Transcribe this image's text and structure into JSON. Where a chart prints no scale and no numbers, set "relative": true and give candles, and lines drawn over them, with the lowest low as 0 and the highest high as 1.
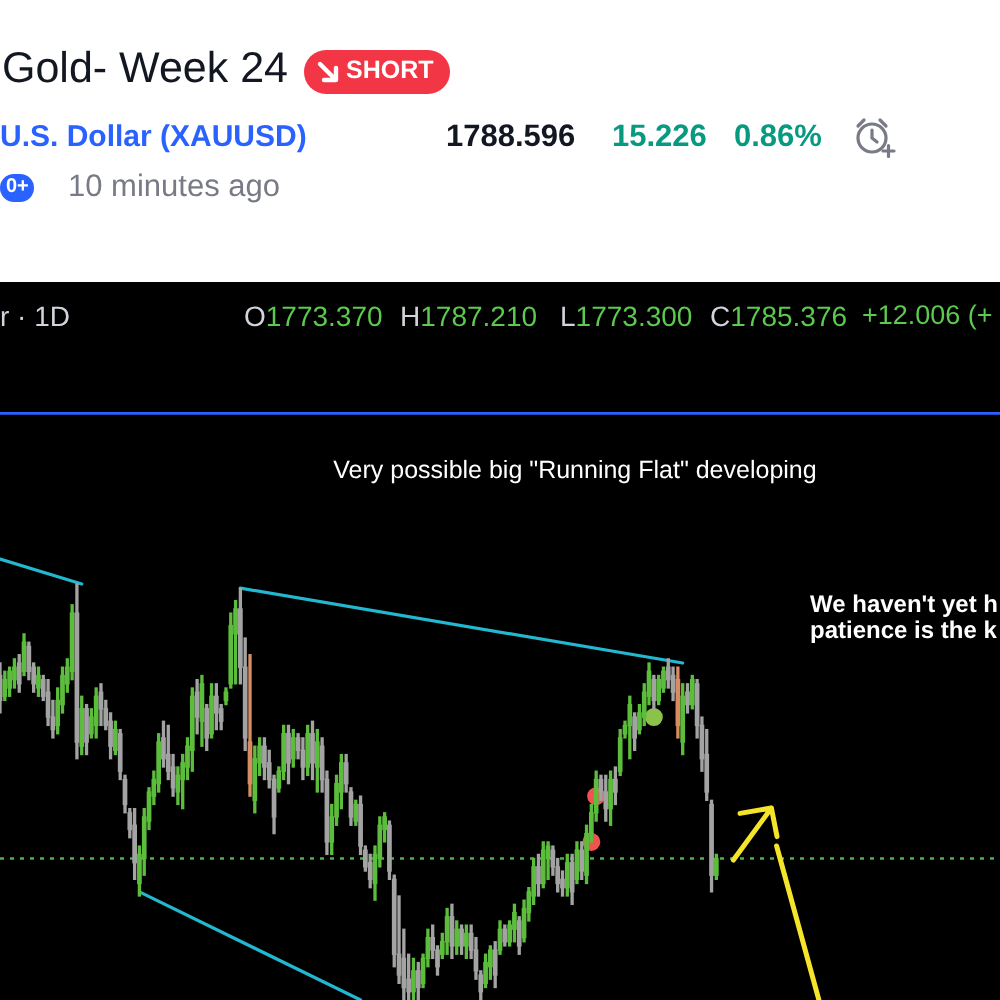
{
  "chart_data": {
    "type": "candlestick",
    "title": "Gold- Week 24",
    "subtitle": "U.S. Dollar (XAUUSD)",
    "annotations": [
      "SHORT",
      "1788.596",
      "15.226",
      "0.86%",
      "0+",
      "10 minutes ago",
      "r · 1D",
      "O1773.370",
      "H1787.210",
      "L1773.300",
      "C1785.376",
      "+12.006 (+",
      "Very possible big \"Running Flat\" developing",
      "We haven't yet h\npatience is the k"
    ],
    "relative": true,
    "categories": [
      null,
      null,
      null,
      null,
      null,
      null,
      null,
      null,
      null,
      null,
      null,
      null,
      null,
      null,
      null,
      null,
      null,
      null,
      null,
      null,
      null,
      null,
      null,
      null,
      null,
      null,
      null,
      null,
      null,
      null,
      null,
      null,
      null,
      null,
      null,
      null,
      null,
      null,
      null,
      null,
      null,
      null,
      null,
      null,
      null,
      null,
      null,
      null,
      null,
      null,
      null,
      null,
      null,
      null,
      null,
      null,
      null,
      null,
      null,
      null,
      null,
      null,
      null,
      null,
      null,
      null,
      null,
      null,
      null,
      null,
      null,
      null,
      null,
      null,
      null,
      null,
      null,
      null,
      null,
      null,
      null,
      null,
      null,
      null,
      null,
      null,
      null,
      null,
      null,
      null,
      null,
      null,
      null,
      null,
      null,
      null,
      null,
      null,
      null,
      null,
      null,
      null,
      null,
      null,
      null,
      null,
      null,
      null,
      null,
      null,
      null,
      null,
      null,
      null,
      null,
      null,
      null,
      null,
      null,
      null,
      null,
      null,
      null,
      null,
      null,
      null,
      null,
      null,
      null,
      null,
      null,
      null,
      null,
      null,
      null,
      null,
      null,
      null,
      null,
      null,
      null,
      null,
      null,
      null,
      null,
      null,
      null,
      null,
      null,
      null,
      null,
      null,
      null,
      null,
      null,
      null,
      null,
      null,
      null,
      null,
      null,
      null,
      null,
      null,
      null,
      null,
      null,
      null,
      null,
      null,
      null,
      null,
      null,
      null,
      null,
      null,
      null,
      null,
      null,
      null,
      null,
      null,
      null,
      null,
      null,
      null,
      null,
      null,
      null,
      null,
      null,
      null,
      null,
      null,
      null,
      null,
      null,
      null,
      null,
      null,
      null,
      null,
      null,
      null,
      null,
      null,
      null,
      null,
      null
    ],
    "ohlc": [
      [
        0.78,
        0.81,
        0.69,
        0.72
      ],
      [
        0.73,
        0.79,
        0.72,
        0.77
      ],
      [
        0.75,
        0.8,
        0.73,
        0.79
      ],
      [
        0.77,
        0.82,
        0.75,
        0.8
      ],
      [
        0.81,
        0.83,
        0.74,
        0.76
      ],
      [
        0.79,
        0.88,
        0.78,
        0.86
      ],
      [
        0.85,
        0.86,
        0.77,
        0.79
      ],
      [
        0.8,
        0.81,
        0.74,
        0.76
      ],
      [
        0.75,
        0.8,
        0.73,
        0.78
      ],
      [
        0.77,
        0.78,
        0.72,
        0.73
      ],
      [
        0.74,
        0.77,
        0.66,
        0.68
      ],
      [
        0.68,
        0.72,
        0.63,
        0.65
      ],
      [
        0.66,
        0.75,
        0.64,
        0.72
      ],
      [
        0.71,
        0.8,
        0.69,
        0.78
      ],
      [
        0.76,
        0.82,
        0.74,
        0.8
      ],
      [
        0.79,
        0.95,
        0.77,
        0.93
      ],
      [
        0.93,
        1.0,
        0.58,
        0.62
      ],
      [
        0.61,
        0.73,
        0.59,
        0.7
      ],
      [
        0.7,
        0.71,
        0.59,
        0.62
      ],
      [
        0.64,
        0.7,
        0.63,
        0.68
      ],
      [
        0.66,
        0.75,
        0.63,
        0.73
      ],
      [
        0.74,
        0.76,
        0.66,
        0.7
      ],
      [
        0.7,
        0.72,
        0.65,
        0.66
      ],
      [
        0.67,
        0.69,
        0.58,
        0.61
      ],
      [
        0.6,
        0.67,
        0.59,
        0.65
      ],
      [
        0.64,
        0.65,
        0.53,
        0.55
      ],
      [
        0.53,
        0.54,
        0.45,
        0.47
      ],
      [
        0.45,
        0.46,
        0.39,
        0.41
      ],
      [
        0.42,
        0.46,
        0.29,
        0.33
      ],
      [
        0.28,
        0.37,
        0.25,
        0.35
      ],
      [
        0.34,
        0.46,
        0.3,
        0.44
      ],
      [
        0.43,
        0.51,
        0.41,
        0.5
      ],
      [
        0.49,
        0.55,
        0.47,
        0.53
      ],
      [
        0.52,
        0.64,
        0.5,
        0.62
      ],
      [
        0.63,
        0.67,
        0.56,
        0.58
      ],
      [
        0.59,
        0.66,
        0.53,
        0.55
      ],
      [
        0.56,
        0.59,
        0.49,
        0.51
      ],
      [
        0.5,
        0.56,
        0.47,
        0.54
      ],
      [
        0.53,
        0.59,
        0.46,
        0.57
      ],
      [
        0.56,
        0.63,
        0.53,
        0.61
      ],
      [
        0.6,
        0.75,
        0.55,
        0.73
      ],
      [
        0.74,
        0.77,
        0.64,
        0.68
      ],
      [
        0.67,
        0.78,
        0.61,
        0.76
      ],
      [
        0.7,
        0.71,
        0.6,
        0.63
      ],
      [
        0.64,
        0.76,
        0.63,
        0.73
      ],
      [
        0.73,
        0.76,
        0.65,
        0.69
      ],
      [
        0.7,
        0.71,
        0.65,
        0.67
      ],
      [
        0.72,
        0.75,
        0.71,
        0.74
      ],
      [
        0.76,
        0.93,
        0.75,
        0.9
      ],
      [
        0.88,
        0.96,
        0.76,
        0.94
      ],
      [
        0.94,
        0.99,
        0.76,
        0.8
      ],
      [
        0.8,
        0.87,
        0.6,
        0.63
      ],
      [
        0.62,
        0.83,
        0.49,
        0.52
      ],
      [
        0.48,
        0.61,
        0.45,
        0.58
      ],
      [
        0.57,
        0.63,
        0.54,
        0.61
      ],
      [
        0.61,
        0.63,
        0.53,
        0.56
      ],
      [
        0.57,
        0.6,
        0.51,
        0.53
      ],
      [
        0.53,
        0.54,
        0.4,
        0.44
      ],
      [
        0.51,
        0.56,
        0.5,
        0.55
      ],
      [
        0.55,
        0.66,
        0.53,
        0.64
      ],
      [
        0.64,
        0.66,
        0.52,
        0.57
      ],
      [
        0.58,
        0.65,
        0.56,
        0.63
      ],
      [
        0.63,
        0.64,
        0.58,
        0.6
      ],
      [
        0.6,
        0.63,
        0.53,
        0.56
      ],
      [
        0.56,
        0.66,
        0.54,
        0.64
      ],
      [
        0.64,
        0.67,
        0.53,
        0.57
      ],
      [
        0.56,
        0.65,
        0.5,
        0.62
      ],
      [
        0.61,
        0.63,
        0.5,
        0.53
      ],
      [
        0.53,
        0.55,
        0.35,
        0.38
      ],
      [
        0.38,
        0.47,
        0.35,
        0.44
      ],
      [
        0.44,
        0.54,
        0.42,
        0.52
      ],
      [
        0.5,
        0.59,
        0.46,
        0.57
      ],
      [
        0.57,
        0.59,
        0.5,
        0.52
      ],
      [
        0.5,
        0.51,
        0.42,
        0.44
      ],
      [
        0.43,
        0.48,
        0.42,
        0.47
      ],
      [
        0.47,
        0.49,
        0.35,
        0.37
      ],
      [
        0.36,
        0.37,
        0.31,
        0.32
      ],
      [
        0.33,
        0.35,
        0.27,
        0.29
      ],
      [
        0.28,
        0.37,
        0.24,
        0.35
      ],
      [
        0.34,
        0.44,
        0.32,
        0.42
      ],
      [
        0.41,
        0.45,
        0.38,
        0.44
      ],
      [
        0.42,
        0.43,
        0.29,
        0.31
      ],
      [
        0.29,
        0.3,
        0.08,
        0.11
      ],
      [
        0.11,
        0.25,
        0.04,
        0.06
      ],
      [
        0.1,
        0.17,
        0,
        0.03
      ],
      [
        0.05,
        0.11,
        0,
        0.02
      ],
      [
        0.02,
        0.1,
        0,
        0.07
      ],
      [
        0.07,
        0.09,
        0,
        0.03
      ],
      [
        0.04,
        0.11,
        0.03,
        0.1
      ],
      [
        0.1,
        0.17,
        0.08,
        0.15
      ],
      [
        0.15,
        0.18,
        0.1,
        0.12
      ],
      [
        0.12,
        0.13,
        0.06,
        0.08
      ],
      [
        0.11,
        0.16,
        0.1,
        0.14
      ],
      [
        0.14,
        0.22,
        0.11,
        0.2
      ],
      [
        0.2,
        0.23,
        0.1,
        0.13
      ],
      [
        0.13,
        0.19,
        0.11,
        0.17
      ],
      [
        0.17,
        0.18,
        0.11,
        0.13
      ],
      [
        0.13,
        0.18,
        0.1,
        0.16
      ],
      [
        0.16,
        0.18,
        0.1,
        0.12
      ],
      [
        0.12,
        0.15,
        0.05,
        0.07
      ],
      [
        0.06,
        0.07,
        0,
        0.02
      ],
      [
        0.04,
        0.11,
        0.03,
        0.09
      ],
      [
        0.08,
        0.13,
        0.05,
        0.12
      ],
      [
        0.12,
        0.14,
        0.03,
        0.06
      ],
      [
        0.12,
        0.19,
        0.11,
        0.17
      ],
      [
        0.17,
        0.18,
        0.13,
        0.14
      ],
      [
        0.14,
        0.19,
        0.13,
        0.18
      ],
      [
        0.17,
        0.23,
        0.14,
        0.21
      ],
      [
        0.19,
        0.2,
        0.11,
        0.13
      ],
      [
        0.15,
        0.24,
        0.14,
        0.22
      ],
      [
        0.21,
        0.27,
        0.19,
        0.26
      ],
      [
        0.25,
        0.34,
        0.23,
        0.32
      ],
      [
        0.32,
        0.35,
        0.25,
        0.28
      ],
      [
        0.28,
        0.38,
        0.27,
        0.36
      ],
      [
        0.34,
        0.38,
        0.29,
        0.37
      ],
      [
        0.36,
        0.37,
        0.3,
        0.32
      ],
      [
        0.32,
        0.34,
        0.26,
        0.28
      ],
      [
        0.29,
        0.31,
        0.25,
        0.27
      ],
      [
        0.27,
        0.35,
        0.25,
        0.33
      ],
      [
        0.33,
        0.35,
        0.23,
        0.26
      ],
      [
        0.29,
        0.38,
        0.28,
        0.36
      ],
      [
        0.36,
        0.38,
        0.29,
        0.31
      ],
      [
        0.3,
        0.42,
        0.28,
        0.4
      ],
      [
        0.4,
        0.47,
        0.38,
        0.45
      ],
      [
        0.45,
        0.55,
        0.43,
        0.53
      ],
      [
        0.53,
        0.54,
        0.48,
        0.5
      ],
      [
        0.5,
        0.54,
        0.43,
        0.46
      ],
      [
        0.46,
        0.55,
        0.42,
        0.53
      ],
      [
        0.53,
        0.56,
        0.47,
        0.5
      ],
      [
        0.55,
        0.65,
        0.54,
        0.63
      ],
      [
        0.64,
        0.67,
        0.63,
        0.66
      ],
      [
        0.66,
        0.73,
        0.58,
        0.71
      ],
      [
        0.68,
        0.69,
        0.6,
        0.63
      ],
      [
        0.65,
        0.71,
        0.64,
        0.69
      ],
      [
        0.68,
        0.76,
        0.66,
        0.74
      ],
      [
        0.73,
        0.81,
        0.71,
        0.79
      ],
      [
        0.77,
        0.78,
        0.7,
        0.72
      ],
      [
        0.72,
        0.78,
        0.71,
        0.77
      ],
      [
        0.75,
        0.8,
        0.74,
        0.79
      ],
      [
        0.8,
        0.82,
        0.75,
        0.77
      ],
      [
        0.78,
        0.8,
        0.72,
        0.74
      ],
      [
        0.77,
        0.8,
        0.63,
        0.66
      ],
      [
        0.62,
        0.76,
        0.59,
        0.73
      ],
      [
        0.74,
        0.76,
        0.69,
        0.71
      ],
      [
        0.71,
        0.78,
        0.7,
        0.77
      ],
      [
        0.76,
        0.77,
        0.63,
        0.66
      ],
      [
        0.66,
        0.68,
        0.55,
        0.58
      ],
      [
        0.59,
        0.65,
        0.48,
        0.5
      ],
      [
        0.47,
        0.48,
        0.26,
        0.3
      ],
      [
        0.3,
        0.35,
        0.29,
        0.34
      ],
      null,
      null,
      null,
      null,
      null,
      null,
      null,
      null,
      null,
      null,
      null,
      null,
      null,
      null,
      null,
      null,
      null,
      null,
      null,
      null,
      null,
      null,
      null,
      null,
      null,
      null,
      null,
      null,
      null,
      null,
      null,
      null,
      null,
      null,
      null,
      null,
      null,
      null,
      null,
      null,
      null,
      null,
      null,
      null,
      null,
      null,
      null,
      null,
      null,
      null,
      null,
      null,
      null,
      null,
      null,
      null,
      null,
      null,
      null
    ],
    "colors": [
      "#a3a3a3",
      "#5cbd3c",
      "#5cbd3c",
      "#5cbd3c",
      "#a3a3a3",
      "#5cbd3c",
      "#a3a3a3",
      "#a3a3a3",
      "#5cbd3c",
      "#a3a3a3",
      "#a3a3a3",
      "#a3a3a3",
      "#5cbd3c",
      "#5cbd3c",
      "#5cbd3c",
      "#5cbd3c",
      "#a3a3a3",
      "#5cbd3c",
      "#a3a3a3",
      "#5cbd3c",
      "#5cbd3c",
      "#a3a3a3",
      "#a3a3a3",
      "#a3a3a3",
      "#5cbd3c",
      "#a3a3a3",
      "#a3a3a3",
      "#a3a3a3",
      "#a3a3a3",
      "#5cbd3c",
      "#5cbd3c",
      "#5cbd3c",
      "#5cbd3c",
      "#5cbd3c",
      "#a3a3a3",
      "#a3a3a3",
      "#a3a3a3",
      "#5cbd3c",
      "#5cbd3c",
      "#5cbd3c",
      "#5cbd3c",
      "#a3a3a3",
      "#5cbd3c",
      "#a3a3a3",
      "#5cbd3c",
      "#a3a3a3",
      "#a3a3a3",
      "#5cbd3c",
      "#5cbd3c",
      "#5cbd3c",
      "#a3a3a3",
      "#a3a3a3",
      "#d98c5f",
      "#5cbd3c",
      "#5cbd3c",
      "#a3a3a3",
      "#a3a3a3",
      "#a3a3a3",
      "#5cbd3c",
      "#5cbd3c",
      "#a3a3a3",
      "#5cbd3c",
      "#a3a3a3",
      "#a3a3a3",
      "#5cbd3c",
      "#a3a3a3",
      "#5cbd3c",
      "#a3a3a3",
      "#a3a3a3",
      "#5cbd3c",
      "#5cbd3c",
      "#5cbd3c",
      "#a3a3a3",
      "#a3a3a3",
      "#5cbd3c",
      "#a3a3a3",
      "#a3a3a3",
      "#a3a3a3",
      "#5cbd3c",
      "#5cbd3c",
      "#5cbd3c",
      "#a3a3a3",
      "#a3a3a3",
      "#a3a3a3",
      "#a3a3a3",
      "#a3a3a3",
      "#5cbd3c",
      "#a3a3a3",
      "#5cbd3c",
      "#5cbd3c",
      "#a3a3a3",
      "#a3a3a3",
      "#5cbd3c",
      "#5cbd3c",
      "#a3a3a3",
      "#5cbd3c",
      "#a3a3a3",
      "#5cbd3c",
      "#a3a3a3",
      "#a3a3a3",
      "#a3a3a3",
      "#5cbd3c",
      "#5cbd3c",
      "#a3a3a3",
      "#5cbd3c",
      "#a3a3a3",
      "#5cbd3c",
      "#5cbd3c",
      "#a3a3a3",
      "#5cbd3c",
      "#5cbd3c",
      "#5cbd3c",
      "#a3a3a3",
      "#5cbd3c",
      "#5cbd3c",
      "#a3a3a3",
      "#a3a3a3",
      "#a3a3a3",
      "#5cbd3c",
      "#a3a3a3",
      "#5cbd3c",
      "#a3a3a3",
      "#5cbd3c",
      "#5cbd3c",
      "#5cbd3c",
      "#a3a3a3",
      "#a3a3a3",
      "#5cbd3c",
      "#a3a3a3",
      "#5cbd3c",
      "#5cbd3c",
      "#5cbd3c",
      "#a3a3a3",
      "#5cbd3c",
      "#5cbd3c",
      "#5cbd3c",
      "#a3a3a3",
      "#5cbd3c",
      "#5cbd3c",
      "#a3a3a3",
      "#a3a3a3",
      "#d98c5f",
      "#5cbd3c",
      "#a3a3a3",
      "#5cbd3c",
      "#a3a3a3",
      "#a3a3a3",
      "#a3a3a3",
      "#a3a3a3",
      "#5cbd3c",
      null,
      null,
      null,
      null,
      null,
      null,
      null,
      null,
      null,
      null,
      null,
      null,
      null,
      null,
      null,
      null,
      null,
      null,
      null,
      null,
      null,
      null,
      null,
      null,
      null,
      null,
      null,
      null,
      null,
      null,
      null,
      null,
      null,
      null,
      null,
      null,
      null,
      null,
      null,
      null,
      null,
      null,
      null,
      null,
      null,
      null,
      null,
      null,
      null,
      null,
      null,
      null,
      null,
      null,
      null,
      null,
      null,
      null,
      null
    ],
    "series": [
      {
        "type": "line",
        "color": "#22b8cf",
        "values": [
          1.06,
          null,
          null,
          null,
          null,
          null,
          null,
          null,
          null,
          null,
          null,
          null,
          null,
          null,
          null,
          null,
          null,
          1.0,
          null,
          null,
          null,
          null,
          null,
          null,
          null,
          null,
          null,
          null,
          null,
          null,
          null,
          null,
          null,
          null,
          null,
          null,
          null,
          null,
          null,
          null,
          null,
          null,
          null,
          null,
          null,
          null,
          null,
          null,
          null,
          null,
          null,
          null,
          null,
          null,
          null,
          null,
          null,
          null,
          null,
          null,
          null,
          null,
          null,
          null,
          null,
          null,
          null,
          null,
          null,
          null,
          null,
          null,
          null,
          null,
          null,
          null,
          null,
          null,
          null,
          null,
          null,
          null,
          null,
          null,
          null,
          null,
          null,
          null,
          null,
          null,
          null,
          null,
          null,
          null,
          null,
          null,
          null,
          null,
          null,
          null,
          null,
          null,
          null,
          null,
          null,
          null,
          null,
          null,
          null,
          null,
          null,
          null,
          null,
          null,
          null,
          null,
          null,
          null,
          null,
          null,
          null,
          null,
          null,
          null,
          null,
          null,
          null,
          null,
          null,
          null,
          null,
          null,
          null,
          null,
          null,
          null,
          null,
          null,
          null,
          null,
          null,
          null,
          null,
          null,
          null,
          null,
          null,
          null,
          null,
          null,
          null,
          null,
          null,
          null,
          null,
          null,
          null,
          null,
          null,
          null,
          null,
          null,
          null,
          null,
          null,
          null,
          null,
          null,
          null,
          null,
          null,
          null,
          null,
          null,
          null,
          null,
          null,
          null,
          null,
          null,
          null,
          null,
          null,
          null,
          null,
          null,
          null,
          null,
          null,
          null,
          null,
          null,
          null,
          null,
          null,
          null,
          null,
          null,
          null,
          null,
          null,
          null,
          null,
          null,
          null,
          null,
          null,
          null,
          null
        ]
      },
      {
        "type": "line",
        "color": "#22b8cf",
        "values": [
          null,
          null,
          null,
          null,
          null,
          null,
          null,
          null,
          null,
          null,
          null,
          null,
          null,
          null,
          null,
          null,
          null,
          null,
          null,
          null,
          null,
          null,
          null,
          null,
          null,
          null,
          null,
          null,
          null,
          null,
          null,
          null,
          null,
          null,
          null,
          null,
          null,
          null,
          null,
          null,
          null,
          null,
          null,
          null,
          null,
          null,
          null,
          null,
          null,
          null,
          0.99,
          null,
          null,
          null,
          null,
          null,
          null,
          null,
          null,
          null,
          null,
          null,
          null,
          null,
          null,
          null,
          null,
          null,
          null,
          null,
          null,
          null,
          null,
          null,
          null,
          null,
          null,
          null,
          null,
          null,
          null,
          null,
          null,
          null,
          null,
          null,
          null,
          null,
          null,
          null,
          null,
          null,
          null,
          null,
          null,
          null,
          null,
          null,
          null,
          null,
          null,
          null,
          null,
          null,
          null,
          null,
          null,
          null,
          null,
          null,
          null,
          null,
          null,
          null,
          null,
          null,
          null,
          null,
          null,
          null,
          null,
          null,
          null,
          null,
          null,
          null,
          null,
          null,
          null,
          null,
          null,
          null,
          null,
          null,
          null,
          null,
          null,
          null,
          null,
          null,
          null,
          null,
          0.81,
          null,
          null,
          null,
          null,
          null,
          null,
          null,
          null,
          null,
          null,
          null,
          null,
          null,
          null,
          null,
          null,
          null,
          null,
          null,
          null,
          null,
          null,
          null,
          null,
          null,
          null,
          null,
          null,
          null,
          null,
          null,
          null,
          null,
          null,
          null,
          null,
          null,
          null,
          null,
          null,
          null,
          null,
          null,
          null,
          null,
          null,
          null,
          null,
          null,
          null,
          null,
          null,
          null,
          null,
          null,
          null,
          null,
          null,
          null,
          null,
          null,
          null,
          null,
          null,
          null,
          null
        ]
      },
      {
        "type": "line",
        "color": "#22b8cf",
        "values": [
          null,
          null,
          null,
          null,
          null,
          null,
          null,
          null,
          null,
          null,
          null,
          null,
          null,
          null,
          null,
          null,
          null,
          null,
          null,
          null,
          null,
          null,
          null,
          null,
          null,
          null,
          null,
          null,
          null,
          0.26,
          null,
          null,
          null,
          null,
          null,
          null,
          null,
          null,
          null,
          null,
          null,
          null,
          null,
          null,
          null,
          null,
          null,
          null,
          null,
          null,
          null,
          null,
          null,
          null,
          null,
          null,
          null,
          null,
          null,
          null,
          null,
          null,
          null,
          null,
          null,
          null,
          null,
          null,
          null,
          null,
          null,
          null,
          null,
          null,
          null,
          0,
          null,
          null,
          null,
          null,
          null,
          null,
          null,
          null,
          null,
          null,
          null,
          null,
          null,
          null,
          null,
          null,
          null,
          null,
          null,
          null,
          null,
          null,
          null,
          null,
          null,
          null,
          null,
          null,
          null,
          null,
          null,
          null,
          null,
          null,
          null,
          null,
          null,
          null,
          null,
          null,
          null,
          null,
          null,
          null,
          null,
          null,
          null,
          null,
          null,
          null,
          null,
          null,
          null,
          null,
          null,
          null,
          null,
          null,
          null,
          null,
          null,
          null,
          null,
          null,
          null,
          null,
          null,
          null,
          null,
          null,
          null,
          null,
          null,
          null,
          null,
          null,
          null,
          null,
          null,
          null,
          null,
          null,
          null,
          null,
          null,
          null,
          null,
          null,
          null,
          null,
          null,
          null,
          null,
          null,
          null,
          null,
          null,
          null,
          null,
          null,
          null,
          null,
          null,
          null,
          null,
          null,
          null,
          null,
          null,
          null,
          null,
          null,
          null,
          null,
          null,
          null,
          null,
          null,
          null,
          null,
          null,
          null,
          null,
          null,
          null,
          null,
          null,
          null,
          null,
          null,
          null,
          null,
          null
        ]
      },
      {
        "type": "scatter",
        "color": "#f05350",
        "marker": "circle",
        "values": [
          null,
          null,
          null,
          null,
          null,
          null,
          null,
          null,
          null,
          null,
          null,
          null,
          null,
          null,
          null,
          null,
          null,
          null,
          null,
          null,
          null,
          null,
          null,
          null,
          null,
          null,
          null,
          null,
          null,
          null,
          null,
          null,
          null,
          null,
          null,
          null,
          null,
          null,
          null,
          null,
          null,
          null,
          null,
          null,
          null,
          null,
          null,
          null,
          null,
          null,
          null,
          null,
          null,
          null,
          null,
          null,
          null,
          null,
          null,
          null,
          null,
          null,
          null,
          null,
          null,
          null,
          null,
          null,
          null,
          null,
          null,
          null,
          null,
          null,
          null,
          null,
          null,
          null,
          null,
          null,
          null,
          null,
          null,
          null,
          null,
          null,
          null,
          null,
          null,
          null,
          null,
          null,
          null,
          null,
          null,
          null,
          null,
          null,
          null,
          null,
          null,
          null,
          null,
          null,
          null,
          null,
          null,
          null,
          null,
          null,
          null,
          null,
          null,
          null,
          null,
          null,
          null,
          null,
          null,
          null,
          null,
          null,
          null,
          0.38,
          0.49,
          null,
          null,
          null,
          null,
          null,
          null,
          null,
          null,
          null,
          null,
          null,
          null,
          null,
          null,
          null,
          null,
          null,
          null,
          null,
          null,
          null,
          null,
          null,
          null,
          null,
          null,
          null,
          null,
          null,
          null,
          null,
          null,
          null,
          null,
          null,
          null,
          null,
          null,
          null,
          null,
          null,
          null,
          null,
          null,
          null,
          null,
          null,
          null,
          null,
          null,
          null,
          null,
          null,
          null,
          null,
          null,
          null,
          null,
          null,
          null,
          null,
          null,
          null,
          null,
          null,
          null,
          null,
          null,
          null,
          null,
          null,
          null,
          null,
          null,
          null,
          null,
          null,
          null,
          null,
          null,
          null,
          null,
          null,
          null
        ]
      },
      {
        "type": "scatter",
        "color": "#8bc34a",
        "marker": "circle",
        "values": [
          null,
          null,
          null,
          null,
          null,
          null,
          null,
          null,
          null,
          null,
          null,
          null,
          null,
          null,
          null,
          null,
          null,
          null,
          null,
          null,
          null,
          null,
          null,
          null,
          null,
          null,
          null,
          null,
          null,
          null,
          null,
          null,
          null,
          null,
          null,
          null,
          null,
          null,
          null,
          null,
          null,
          null,
          null,
          null,
          null,
          null,
          null,
          null,
          null,
          null,
          null,
          null,
          null,
          null,
          null,
          null,
          null,
          null,
          null,
          null,
          null,
          null,
          null,
          null,
          null,
          null,
          null,
          null,
          null,
          null,
          null,
          null,
          null,
          null,
          null,
          null,
          null,
          null,
          null,
          null,
          null,
          null,
          null,
          null,
          null,
          null,
          null,
          null,
          null,
          null,
          null,
          null,
          null,
          null,
          null,
          null,
          null,
          null,
          null,
          null,
          null,
          null,
          null,
          null,
          null,
          null,
          null,
          null,
          null,
          null,
          null,
          null,
          null,
          null,
          null,
          null,
          null,
          null,
          null,
          null,
          null,
          null,
          null,
          null,
          null,
          null,
          null,
          null,
          null,
          null,
          null,
          null,
          null,
          null,
          null,
          null,
          0.68,
          null,
          null,
          null,
          null,
          null,
          null,
          null,
          null,
          null,
          null,
          null,
          null,
          null,
          null,
          null,
          null,
          null,
          null,
          null,
          null,
          null,
          null,
          null,
          null,
          null,
          null,
          null,
          null,
          null,
          null,
          null,
          null,
          null,
          null,
          null,
          null,
          null,
          null,
          null,
          null,
          null,
          null,
          null,
          null,
          null,
          null,
          null,
          null,
          null,
          null,
          null,
          null,
          null,
          null,
          null,
          null,
          null,
          null,
          null,
          null,
          null,
          null,
          null,
          null,
          null,
          null,
          null,
          null,
          null,
          null,
          null,
          null
        ]
      }
    ],
    "ref_lines": [
      {
        "axis": "y",
        "value": 1.41,
        "color": "#2962ff",
        "line_style": "solid"
      },
      {
        "axis": "y",
        "value": 0.34,
        "color": "#4caf50",
        "line_style": "dotted"
      }
    ]
  }
}
